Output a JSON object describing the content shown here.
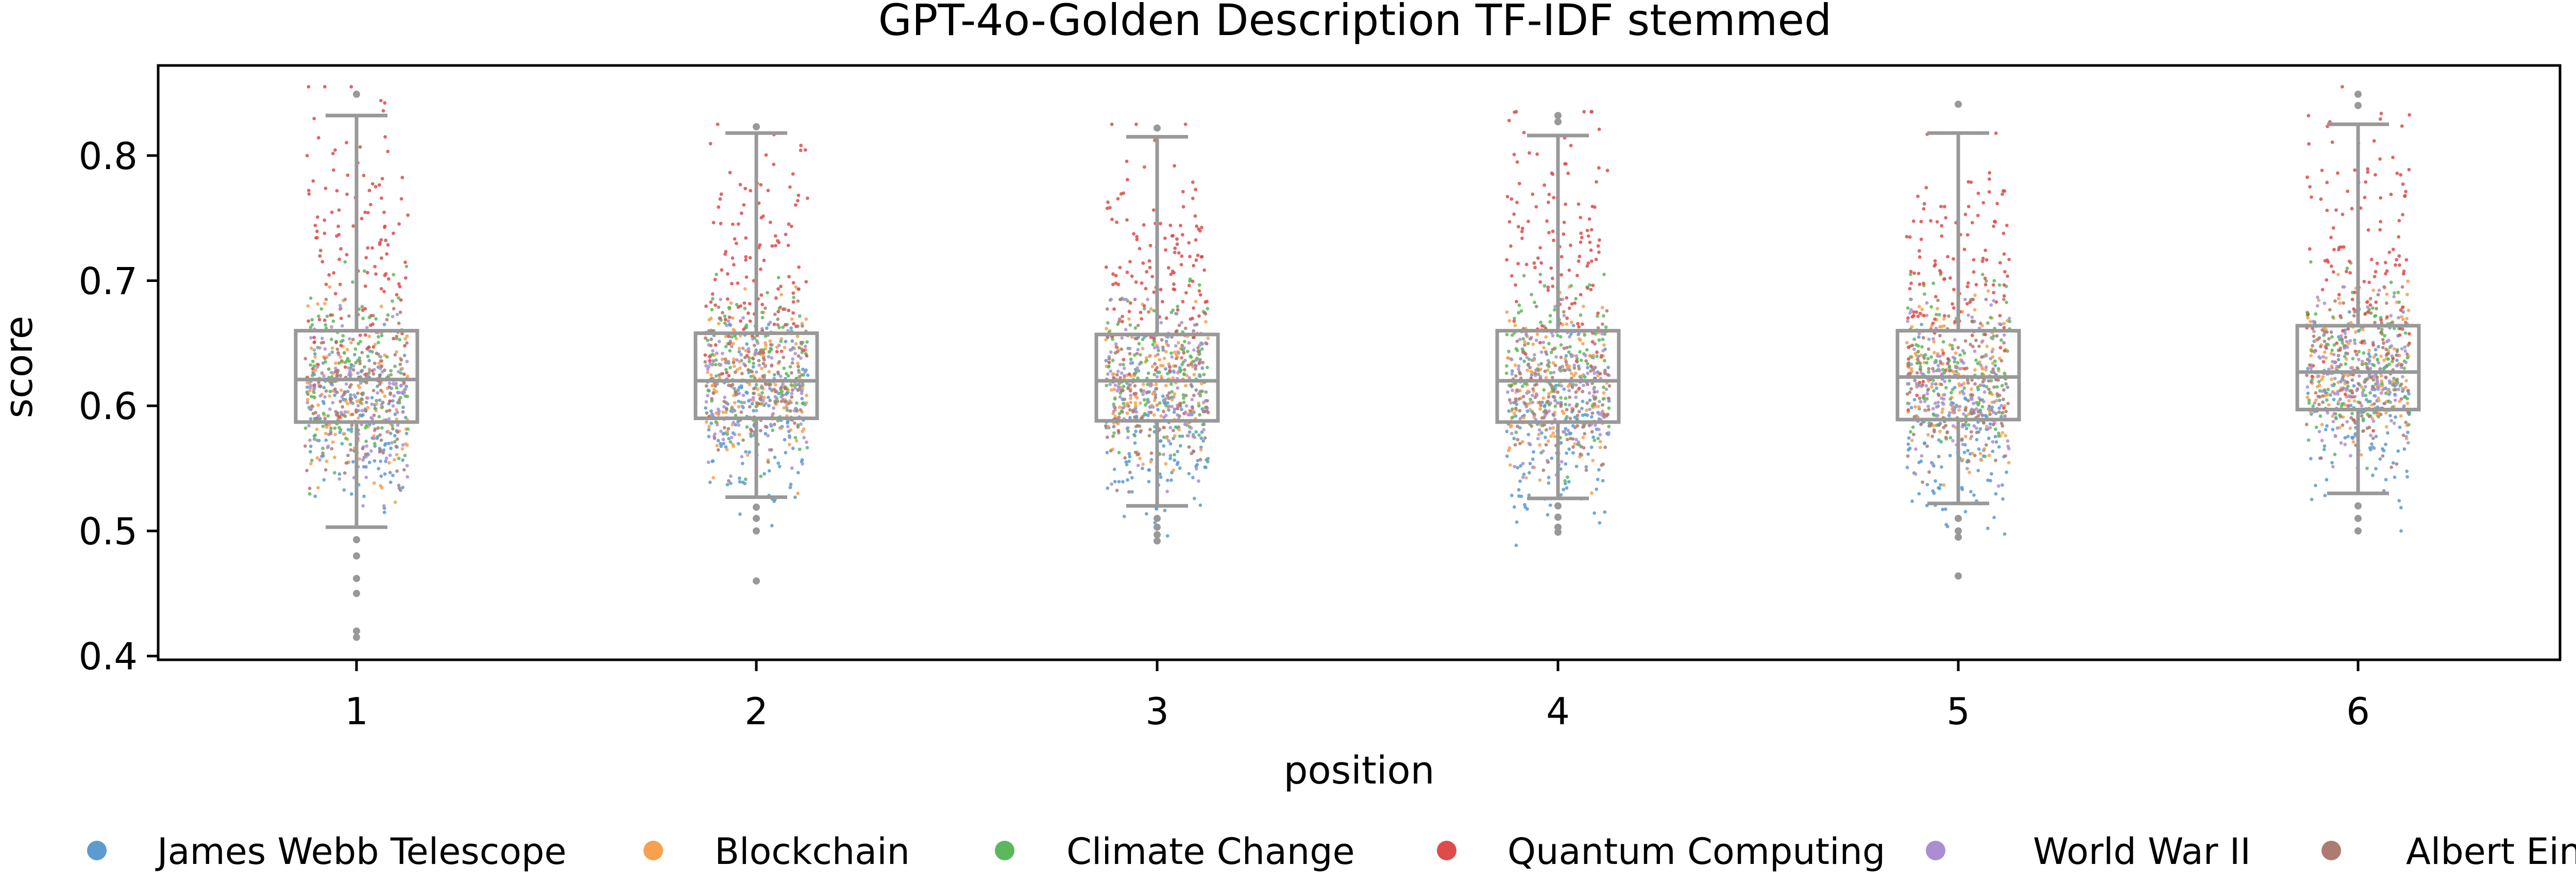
{
  "chart_data": {
    "type": "box+strip",
    "title": "GPT-4o-Golden Description TF-IDF stemmed",
    "xlabel": "position",
    "ylabel": "score",
    "categories": [
      "1",
      "2",
      "3",
      "4",
      "5",
      "6"
    ],
    "ylim": [
      0.397,
      0.872
    ],
    "yticks": [
      0.4,
      0.5,
      0.6,
      0.7,
      0.8
    ],
    "ytick_labels": [
      "0.4",
      "0.5",
      "0.6",
      "0.7",
      "0.8"
    ],
    "grid": false,
    "legend_position": "bottom",
    "box_color": "#999999",
    "boxes": [
      {
        "position": "1",
        "whisker_low": 0.503,
        "q1": 0.587,
        "median": 0.621,
        "q3": 0.66,
        "whisker_high": 0.832,
        "outliers": [
          0.849,
          0.493,
          0.48,
          0.462,
          0.45,
          0.42,
          0.415
        ]
      },
      {
        "position": "2",
        "whisker_low": 0.527,
        "q1": 0.59,
        "median": 0.62,
        "q3": 0.658,
        "whisker_high": 0.818,
        "outliers": [
          0.823,
          0.519,
          0.51,
          0.5,
          0.46
        ]
      },
      {
        "position": "3",
        "whisker_low": 0.52,
        "q1": 0.588,
        "median": 0.62,
        "q3": 0.657,
        "whisker_high": 0.815,
        "outliers": [
          0.822,
          0.51,
          0.503,
          0.497,
          0.492
        ]
      },
      {
        "position": "4",
        "whisker_low": 0.526,
        "q1": 0.587,
        "median": 0.62,
        "q3": 0.66,
        "whisker_high": 0.816,
        "outliers": [
          0.832,
          0.827,
          0.52,
          0.511,
          0.503,
          0.499
        ]
      },
      {
        "position": "5",
        "whisker_low": 0.522,
        "q1": 0.589,
        "median": 0.623,
        "q3": 0.66,
        "whisker_high": 0.818,
        "outliers": [
          0.841,
          0.51,
          0.5,
          0.495,
          0.464
        ]
      },
      {
        "position": "6",
        "whisker_low": 0.53,
        "q1": 0.597,
        "median": 0.627,
        "q3": 0.664,
        "whisker_high": 0.825,
        "outliers": [
          0.849,
          0.84,
          0.52,
          0.51,
          0.5
        ]
      }
    ],
    "series": [
      {
        "name": "James Webb Telescope",
        "color": "#5b9bd0",
        "ranges": [
          [
            0.51,
            0.66
          ],
          [
            0.52,
            0.66
          ],
          [
            0.5,
            0.65
          ],
          [
            0.5,
            0.66
          ],
          [
            0.5,
            0.66
          ],
          [
            0.52,
            0.67
          ]
        ]
      },
      {
        "name": "Blockchain",
        "color": "#f7a04f",
        "ranges": [
          [
            0.53,
            0.69
          ],
          [
            0.55,
            0.69
          ],
          [
            0.55,
            0.68
          ],
          [
            0.55,
            0.69
          ],
          [
            0.55,
            0.69
          ],
          [
            0.56,
            0.7
          ]
        ]
      },
      {
        "name": "Climate Change",
        "color": "#5cb85c",
        "ranges": [
          [
            0.54,
            0.71
          ],
          [
            0.56,
            0.7
          ],
          [
            0.56,
            0.7
          ],
          [
            0.56,
            0.7
          ],
          [
            0.56,
            0.7
          ],
          [
            0.57,
            0.71
          ]
        ]
      },
      {
        "name": "Quantum Computing",
        "color": "#de4b4b",
        "ranges": [
          [
            0.6,
            0.85
          ],
          [
            0.6,
            0.82
          ],
          [
            0.6,
            0.82
          ],
          [
            0.6,
            0.83
          ],
          [
            0.6,
            0.82
          ],
          [
            0.6,
            0.85
          ]
        ]
      },
      {
        "name": "World War II",
        "color": "#a98fd2",
        "ranges": [
          [
            0.54,
            0.68
          ],
          [
            0.56,
            0.68
          ],
          [
            0.55,
            0.68
          ],
          [
            0.55,
            0.68
          ],
          [
            0.55,
            0.68
          ],
          [
            0.56,
            0.69
          ]
        ]
      },
      {
        "name": "Albert Einstein",
        "color": "#ad7b72",
        "ranges": [
          [
            0.54,
            0.68
          ],
          [
            0.56,
            0.68
          ],
          [
            0.55,
            0.68
          ],
          [
            0.55,
            0.68
          ],
          [
            0.55,
            0.68
          ],
          [
            0.56,
            0.69
          ]
        ]
      }
    ]
  }
}
